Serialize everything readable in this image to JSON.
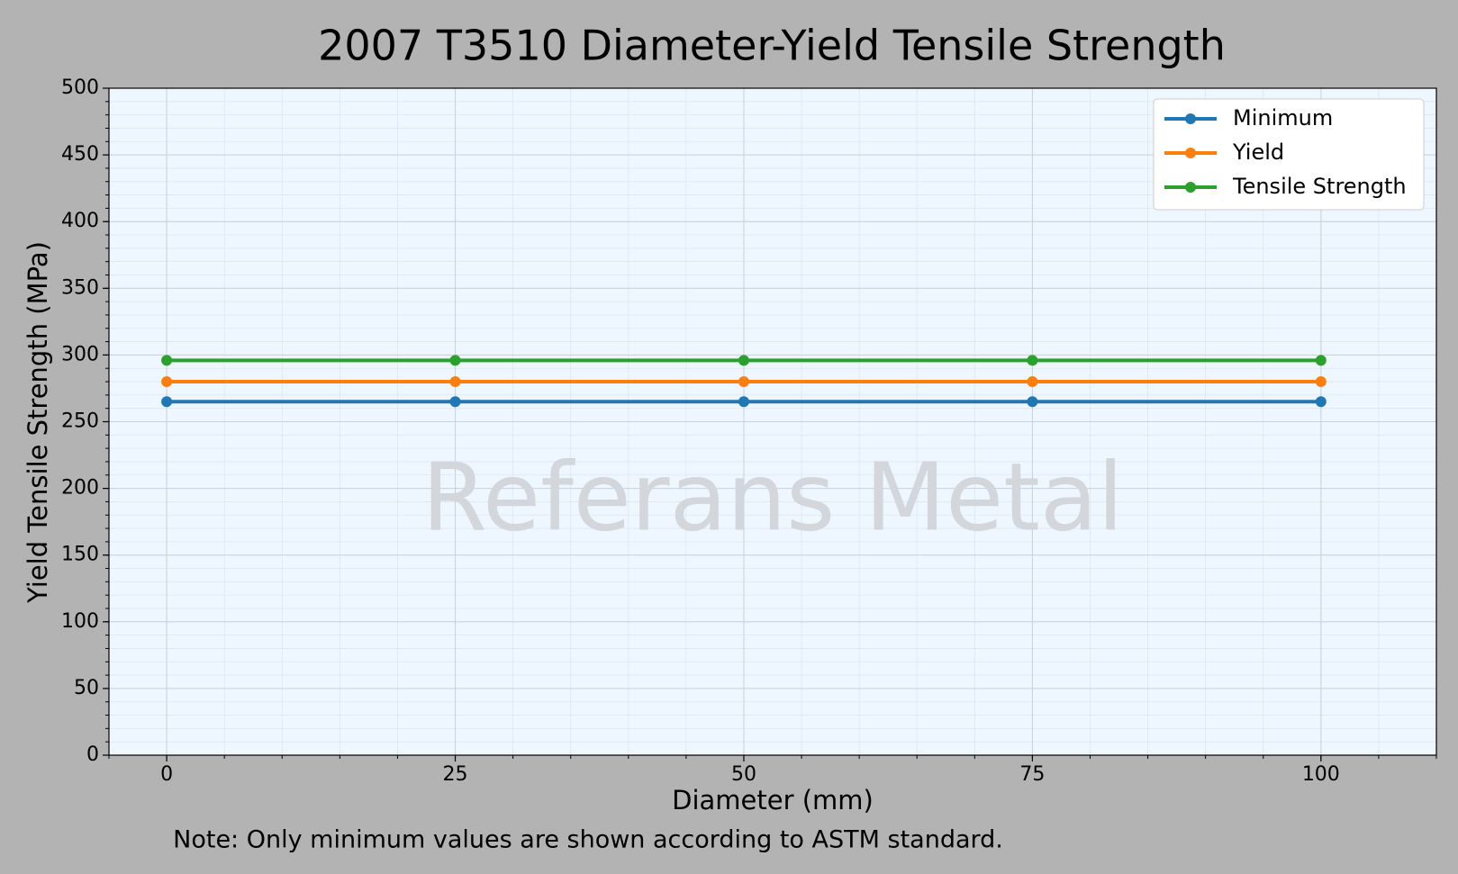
{
  "chart_data": {
    "type": "line",
    "title": "2007 T3510 Diameter-Yield Tensile Strength",
    "x_label": "Diameter (mm)",
    "y_label": "Yield Tensile Strength (MPa)",
    "watermark": "Referans Metal",
    "note": "Note: Only minimum values are shown according to ASTM standard.",
    "x": [
      0,
      25,
      50,
      75,
      100
    ],
    "series": [
      {
        "name": "Minimum",
        "color": "#1f77b4",
        "values": [
          265,
          265,
          265,
          265,
          265
        ]
      },
      {
        "name": "Yield",
        "color": "#ff7f0e",
        "values": [
          280,
          280,
          280,
          280,
          280
        ]
      },
      {
        "name": "Tensile Strength",
        "color": "#2ca02c",
        "values": [
          296,
          296,
          296,
          296,
          296
        ]
      }
    ],
    "xlim": [
      -5,
      110
    ],
    "ylim": [
      0,
      500
    ],
    "xticks": [
      0,
      25,
      50,
      75,
      100
    ],
    "yticks": [
      0,
      50,
      100,
      150,
      200,
      250,
      300,
      350,
      400,
      450,
      500
    ],
    "grid": true,
    "minor_grid": true,
    "legend": "upper right"
  }
}
